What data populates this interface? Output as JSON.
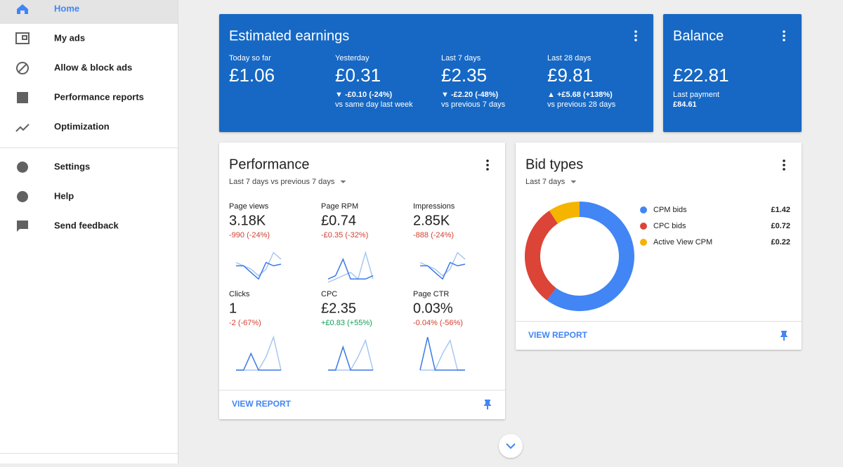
{
  "nav": {
    "items": [
      {
        "label": "Home",
        "active": true
      },
      {
        "label": "My ads"
      },
      {
        "label": "Allow & block ads"
      },
      {
        "label": "Performance reports"
      },
      {
        "label": "Optimization"
      },
      {
        "label": "Settings"
      },
      {
        "label": "Help"
      },
      {
        "label": "Send feedback"
      }
    ]
  },
  "earnings": {
    "title": "Estimated earnings",
    "periods": [
      {
        "label": "Today so far",
        "value": "£1.06"
      },
      {
        "label": "Yesterday",
        "value": "£0.31",
        "change": "▼ -£0.10 (-24%)",
        "compare": "vs same day last week"
      },
      {
        "label": "Last 7 days",
        "value": "£2.35",
        "change": "▼ -£2.20 (-48%)",
        "compare": "vs previous 7 days"
      },
      {
        "label": "Last 28 days",
        "value": "£9.81",
        "change": "▲ +£5.68 (+138%)",
        "compare": "vs previous 28 days"
      }
    ]
  },
  "balance": {
    "title": "Balance",
    "value": "£22.81",
    "last_payment_label": "Last payment",
    "last_payment": "£84.61"
  },
  "performance": {
    "title": "Performance",
    "range": "Last 7 days vs previous 7 days",
    "action": "VIEW REPORT",
    "metrics": [
      {
        "label": "Page views",
        "value": "3.18K",
        "change": "-990 (-24%)",
        "trend": "down",
        "current": [
          5,
          5,
          3,
          1,
          6,
          5,
          5.5
        ],
        "previous": [
          6,
          5,
          4,
          2,
          4,
          9,
          7
        ]
      },
      {
        "label": "Page RPM",
        "value": "£0.74",
        "change": "-£0.35 (-32%)",
        "trend": "down",
        "current": [
          1,
          2,
          7,
          1,
          1,
          1,
          2
        ],
        "previous": [
          0,
          1,
          2,
          3,
          1,
          9,
          1
        ]
      },
      {
        "label": "Impressions",
        "value": "2.85K",
        "change": "-888 (-24%)",
        "trend": "down",
        "current": [
          5,
          5,
          3,
          1,
          6,
          5,
          5.5
        ],
        "previous": [
          6,
          5,
          4,
          2,
          4,
          9,
          7
        ]
      },
      {
        "label": "Clicks",
        "value": "1",
        "change": "-2 (-67%)",
        "trend": "down",
        "current": [
          0,
          0,
          5,
          0,
          0,
          0,
          0
        ],
        "previous": [
          0,
          0,
          0,
          0,
          4,
          10,
          0
        ]
      },
      {
        "label": "CPC",
        "value": "£2.35",
        "change": "+£0.83 (+55%)",
        "trend": "up",
        "current": [
          0,
          0,
          7,
          0,
          0,
          0,
          0
        ],
        "previous": [
          0,
          0,
          0,
          0,
          4,
          9,
          0
        ]
      },
      {
        "label": "Page CTR",
        "value": "0.03%",
        "change": "-0.04% (-56%)",
        "trend": "down",
        "current": [
          0,
          10,
          0,
          0,
          0,
          0,
          0
        ],
        "previous": [
          0,
          0,
          0,
          5,
          9,
          0,
          0
        ]
      }
    ]
  },
  "chart_data": {
    "type": "donut",
    "title": "Bid types",
    "subtitle": "Last 7 days",
    "action": "VIEW REPORT",
    "categories": [
      "CPM bids",
      "CPC bids",
      "Active View CPM"
    ],
    "values": [
      1.42,
      0.72,
      0.22
    ],
    "value_labels": [
      "£1.42",
      "£0.72",
      "£0.22"
    ],
    "colors": [
      "#4285f4",
      "#db4437",
      "#f4b400"
    ]
  }
}
